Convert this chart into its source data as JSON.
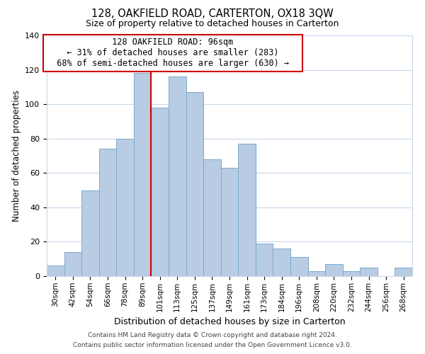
{
  "title": "128, OAKFIELD ROAD, CARTERTON, OX18 3QW",
  "subtitle": "Size of property relative to detached houses in Carterton",
  "xlabel": "Distribution of detached houses by size in Carterton",
  "ylabel": "Number of detached properties",
  "bar_labels": [
    "30sqm",
    "42sqm",
    "54sqm",
    "66sqm",
    "78sqm",
    "89sqm",
    "101sqm",
    "113sqm",
    "125sqm",
    "137sqm",
    "149sqm",
    "161sqm",
    "173sqm",
    "184sqm",
    "196sqm",
    "208sqm",
    "220sqm",
    "232sqm",
    "244sqm",
    "256sqm",
    "268sqm"
  ],
  "bar_values": [
    6,
    14,
    50,
    74,
    80,
    118,
    98,
    116,
    107,
    68,
    63,
    77,
    19,
    16,
    11,
    3,
    7,
    3,
    5,
    0,
    5
  ],
  "bar_color": "#b8cce4",
  "bar_edge_color": "#7aabcc",
  "vline_x": 5.5,
  "vline_color": "#cc0000",
  "annotation_title": "128 OAKFIELD ROAD: 96sqm",
  "annotation_line1": "← 31% of detached houses are smaller (283)",
  "annotation_line2": "68% of semi-detached houses are larger (630) →",
  "annotation_box_color": "#ffffff",
  "annotation_box_edge": "#cc0000",
  "ylim": [
    0,
    140
  ],
  "yticks": [
    0,
    20,
    40,
    60,
    80,
    100,
    120,
    140
  ],
  "footer_line1": "Contains HM Land Registry data © Crown copyright and database right 2024.",
  "footer_line2": "Contains public sector information licensed under the Open Government Licence v3.0.",
  "background_color": "#ffffff",
  "grid_color": "#c8d8e8"
}
